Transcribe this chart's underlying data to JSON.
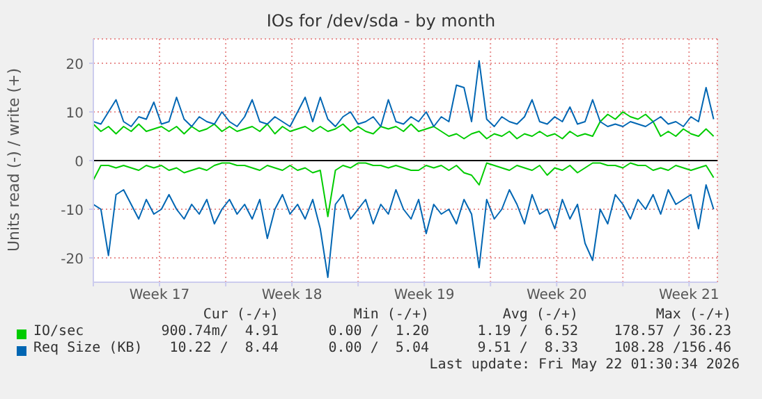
{
  "chart_data": {
    "type": "line",
    "title": "IOs for /dev/sda - by month",
    "ylabel": "Units read (-) / write (+)",
    "x": [
      "2026-04-19T00:00",
      "2026-04-19T09:36",
      "2026-04-19T19:12",
      "2026-04-20T04:48",
      "2026-04-20T14:24",
      "2026-04-21T00:00",
      "2026-04-21T09:36",
      "2026-04-21T19:12",
      "2026-04-22T04:48",
      "2026-04-22T14:24",
      "2026-04-23T00:00",
      "2026-04-23T09:36",
      "2026-04-23T19:12",
      "2026-04-24T04:48",
      "2026-04-24T14:24",
      "2026-04-25T00:00",
      "2026-04-25T09:36",
      "2026-04-25T19:12",
      "2026-04-26T04:48",
      "2026-04-26T14:24",
      "2026-04-27T00:00",
      "2026-04-27T09:36",
      "2026-04-27T19:12",
      "2026-04-28T04:48",
      "2026-04-28T14:24",
      "2026-04-29T00:00",
      "2026-04-29T09:36",
      "2026-04-29T19:12",
      "2026-04-30T04:48",
      "2026-04-30T14:24",
      "2026-05-01T00:00",
      "2026-05-01T09:36",
      "2026-05-01T19:12",
      "2026-05-02T04:48",
      "2026-05-02T14:24",
      "2026-05-03T00:00",
      "2026-05-03T09:36",
      "2026-05-03T19:12",
      "2026-05-04T04:48",
      "2026-05-04T14:24",
      "2026-05-05T00:00",
      "2026-05-05T09:36",
      "2026-05-05T19:12",
      "2026-05-06T04:48",
      "2026-05-06T14:24",
      "2026-05-07T00:00",
      "2026-05-07T09:36",
      "2026-05-07T19:12",
      "2026-05-08T04:48",
      "2026-05-08T14:24",
      "2026-05-09T00:00",
      "2026-05-09T09:36",
      "2026-05-09T19:12",
      "2026-05-10T04:48",
      "2026-05-10T14:24",
      "2026-05-11T00:00",
      "2026-05-11T09:36",
      "2026-05-11T19:12",
      "2026-05-12T04:48",
      "2026-05-12T14:24",
      "2026-05-13T00:00",
      "2026-05-13T09:36",
      "2026-05-13T19:12",
      "2026-05-14T04:48",
      "2026-05-14T14:24",
      "2026-05-15T00:00",
      "2026-05-15T09:36",
      "2026-05-15T19:12",
      "2026-05-16T04:48",
      "2026-05-16T14:24",
      "2026-05-17T00:00",
      "2026-05-17T09:36",
      "2026-05-17T19:12",
      "2026-05-18T04:48",
      "2026-05-18T14:24",
      "2026-05-19T00:00",
      "2026-05-19T09:36",
      "2026-05-19T19:12",
      "2026-05-20T04:48",
      "2026-05-20T14:24",
      "2026-05-21T00:00",
      "2026-05-21T09:36",
      "2026-05-21T19:12"
    ],
    "xlim": [
      "2026-04-19T00:00",
      "2026-05-22T00:00"
    ],
    "xticks": [
      {
        "value": "2026-04-19T00:00",
        "label": null
      },
      {
        "value": "2026-04-22T12:00",
        "label": "Week 17"
      },
      {
        "value": "2026-04-26T00:00",
        "label": null
      },
      {
        "value": "2026-04-29T12:00",
        "label": "Week 18"
      },
      {
        "value": "2026-05-03T00:00",
        "label": null
      },
      {
        "value": "2026-05-06T12:00",
        "label": "Week 19"
      },
      {
        "value": "2026-05-10T00:00",
        "label": null
      },
      {
        "value": "2026-05-13T12:00",
        "label": "Week 20"
      },
      {
        "value": "2026-05-17T00:00",
        "label": null
      },
      {
        "value": "2026-05-20T12:00",
        "label": "Week 21"
      }
    ],
    "ylim": [
      -25,
      25
    ],
    "yticks": [
      -20,
      -10,
      0,
      10,
      20
    ],
    "grid": true,
    "legend": "bottom",
    "marker": "none",
    "line_style": "solid",
    "ref_lines": [
      {
        "axis": "y",
        "value": 0,
        "color": "#000000"
      }
    ],
    "series": [
      {
        "color": "#00cc00",
        "values": [
          -4,
          -1,
          -1,
          -1.5,
          -1,
          -1.5,
          -2,
          -1,
          -1.5,
          -1,
          -2,
          -1.5,
          -2.5,
          -2,
          -1.5,
          -2,
          -1,
          -0.5,
          -0.5,
          -1,
          -1,
          -1.5,
          -2,
          -1,
          -1.5,
          -2,
          -1,
          -2,
          -1.5,
          -2.5,
          -2,
          -11.5,
          -2,
          -1,
          -1.5,
          -0.5,
          -0.5,
          -1,
          -1,
          -1.5,
          -1,
          -1.5,
          -2,
          -2,
          -1,
          -1.5,
          -1,
          -2,
          -1,
          -2.5,
          -3,
          -5,
          -0.5,
          -1,
          -1.5,
          -2,
          -1,
          -1.5,
          -2,
          -1,
          -3,
          -1.5,
          -2,
          -1,
          -2.5,
          -1.5,
          -0.5,
          -0.5,
          -1,
          -1,
          -1.5,
          -0.5,
          -1,
          -1,
          -2,
          -1.5,
          -2,
          -1,
          -1.5,
          -2,
          -1.5,
          -1,
          -3.5
        ]
      },
      {
        "name": "IO/sec",
        "color": "#00cc00",
        "values": [
          7.5,
          6,
          7,
          5.5,
          7,
          6,
          7.5,
          6,
          6.5,
          7,
          6,
          7,
          5.5,
          7,
          6,
          6.5,
          7.5,
          6,
          7,
          6,
          6.5,
          7,
          6,
          7.5,
          5.5,
          7,
          6,
          6.5,
          7,
          6,
          7,
          6,
          6.5,
          7.5,
          6,
          7,
          6,
          5.5,
          7,
          6.5,
          7,
          6,
          7.5,
          6,
          6.5,
          7,
          6,
          5,
          5.5,
          4.5,
          5.5,
          6,
          4.5,
          5.5,
          5,
          6,
          4.5,
          5.5,
          5,
          6,
          5,
          5.5,
          4.5,
          6,
          5,
          5.5,
          5,
          8,
          9.5,
          8.5,
          10,
          9,
          8.5,
          9.5,
          8,
          5,
          6,
          5,
          6.5,
          5.5,
          5,
          6.5,
          5
        ]
      },
      {
        "color": "#0066b3",
        "values": [
          -9,
          -10,
          -19.5,
          -7,
          -6,
          -9,
          -12,
          -8,
          -11,
          -10,
          -7,
          -10,
          -12,
          -9,
          -11,
          -8,
          -13,
          -10,
          -8,
          -11,
          -9,
          -12,
          -8,
          -16,
          -10,
          -7,
          -11,
          -9,
          -12,
          -8,
          -14,
          -24,
          -9,
          -7,
          -12,
          -10,
          -8,
          -13,
          -9,
          -11,
          -6,
          -10,
          -12,
          -8,
          -15,
          -9,
          -11,
          -10,
          -13,
          -8,
          -11,
          -22,
          -8,
          -12,
          -10,
          -6,
          -9,
          -13,
          -7,
          -11,
          -10,
          -14,
          -8,
          -12,
          -9,
          -17,
          -20.5,
          -10,
          -13,
          -7,
          -9,
          -12,
          -8,
          -10,
          -7,
          -11,
          -6,
          -9,
          -8,
          -7,
          -14,
          -5,
          -10
        ]
      },
      {
        "name": "Req Size (KB)",
        "color": "#0066b3",
        "values": [
          8,
          7.5,
          10,
          12.5,
          8,
          7,
          9,
          8.5,
          12,
          7.5,
          8,
          13,
          8.5,
          7,
          9,
          8,
          7.5,
          10,
          8,
          7,
          9,
          12.5,
          8,
          7.5,
          9,
          8,
          7,
          10,
          13,
          8,
          13,
          8.5,
          7,
          9,
          10,
          7.5,
          8,
          9,
          7,
          12.5,
          8,
          7.5,
          9,
          8,
          10,
          7,
          9,
          8,
          15.5,
          15,
          8,
          20.5,
          8.5,
          7,
          9,
          8,
          7.5,
          9,
          12.5,
          8,
          7.5,
          9,
          8,
          11,
          7.5,
          8,
          12.5,
          8,
          7,
          7.5,
          7,
          8,
          7.5,
          7,
          8,
          9,
          7.5,
          8,
          7,
          9,
          8,
          15,
          8.5
        ]
      }
    ],
    "annotations": [
      "Cur (-/+)",
      "Min (-/+)",
      "Avg (-/+)",
      "Max (-/+)",
      "900.74m/  4.91",
      "0.00 /  1.20",
      "1.19 /  6.52",
      "178.57 / 36.23",
      "10.22 /  8.44",
      "0.00 /  5.04",
      "9.51 /  8.33",
      "108.28 /156.46",
      "Last update: Fri May 22 01:30:34 2026"
    ]
  }
}
